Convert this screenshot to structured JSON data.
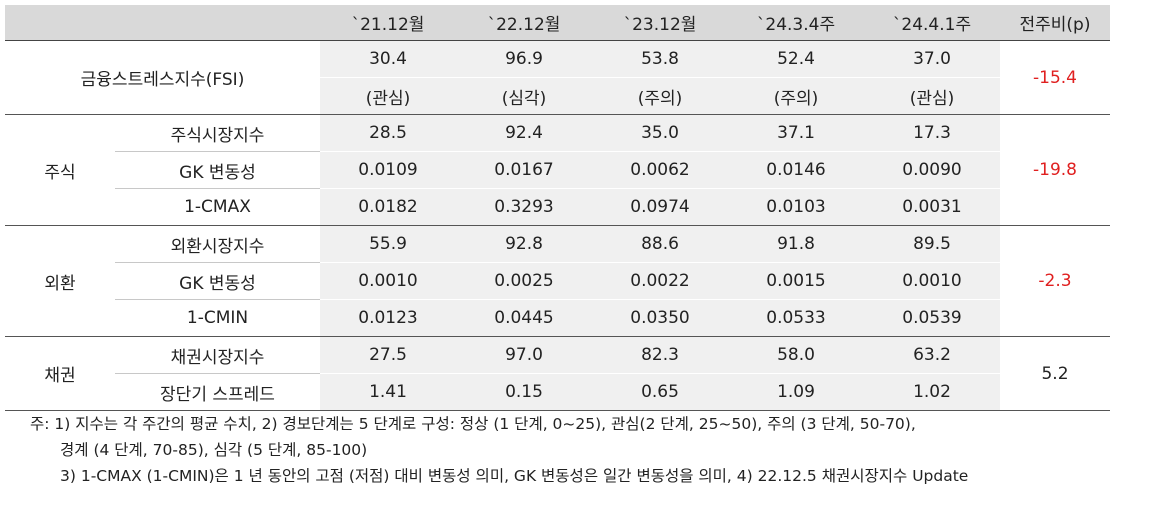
{
  "header": [
    "",
    "",
    "`21.12월",
    "`22.12월",
    "`23.12월",
    "`24.3.4주",
    "`24.4.1주",
    "전주비(p)"
  ],
  "fsi": {
    "label": "금융스트레스지수(FSI)",
    "values": [
      "30.4",
      "96.9",
      "53.8",
      "52.4",
      "37.0"
    ],
    "levels": [
      "(관심)",
      "(심각)",
      "(주의)",
      "(주의)",
      "(관심)"
    ],
    "change": "-15.4"
  },
  "groups": [
    {
      "name": "주식",
      "change": "-19.8",
      "rows": [
        {
          "label": "주식시장지수",
          "values": [
            "28.5",
            "92.4",
            "35.0",
            "37.1",
            "17.3"
          ]
        },
        {
          "label": "GK 변동성",
          "values": [
            "0.0109",
            "0.0167",
            "0.0062",
            "0.0146",
            "0.0090"
          ]
        },
        {
          "label": "1-CMAX",
          "values": [
            "0.0182",
            "0.3293",
            "0.0974",
            "0.0103",
            "0.0031"
          ]
        }
      ]
    },
    {
      "name": "외환",
      "change": "-2.3",
      "rows": [
        {
          "label": "외환시장지수",
          "values": [
            "55.9",
            "92.8",
            "88.6",
            "91.8",
            "89.5"
          ]
        },
        {
          "label": "GK 변동성",
          "values": [
            "0.0010",
            "0.0025",
            "0.0022",
            "0.0015",
            "0.0010"
          ]
        },
        {
          "label": "1-CMIN",
          "values": [
            "0.0123",
            "0.0445",
            "0.0350",
            "0.0533",
            "0.0539"
          ]
        }
      ]
    },
    {
      "name": "채권",
      "change": "5.2",
      "rows": [
        {
          "label": "채권시장지수",
          "values": [
            "27.5",
            "97.0",
            "82.3",
            "58.0",
            "63.2"
          ]
        },
        {
          "label": "장단기 스프레드",
          "values": [
            "1.41",
            "0.15",
            "0.65",
            "1.09",
            "1.02"
          ]
        }
      ]
    }
  ],
  "notes": [
    "주: 1) 지수는 각 주간의 평균 수치, 2) 경보단계는 5 단계로 구성: 정상 (1 단계, 0~25), 관심(2 단계, 25~50), 주의 (3 단계, 50-70),",
    "경계 (4 단계, 70-85), 심각 (5 단계, 85-100)",
    "3) 1-CMAX (1-CMIN)은 1 년 동안의 고점 (저점) 대비 변동성 의미, GK 변동성은 일간 변동성을 의미, 4) 22.12.5 채권시장지수 Update"
  ]
}
